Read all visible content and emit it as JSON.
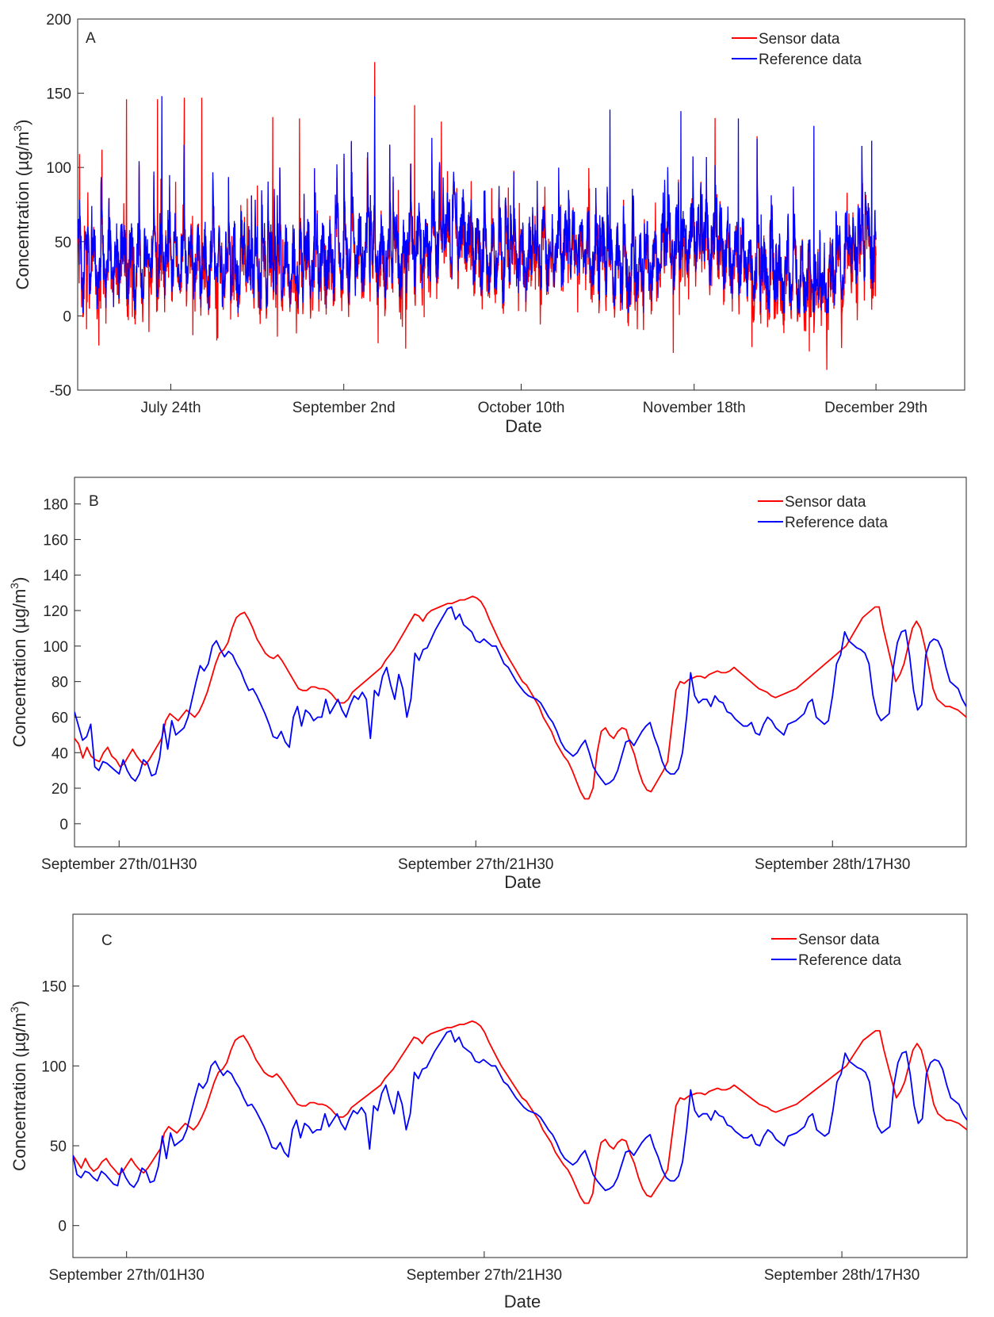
{
  "chart_data": [
    {
      "type": "line",
      "panel_label": "A",
      "xlabel": "Date",
      "ylabel": "Concentration (µg/m",
      "ylabel_sup": "3",
      "ylabel_close": ")",
      "ylim": [
        -50,
        200
      ],
      "yticks": [
        -50,
        0,
        50,
        100,
        150,
        200
      ],
      "xrange": [
        0,
        200
      ],
      "xticks": [
        {
          "pos": 21,
          "label": "July 24th"
        },
        {
          "pos": 60,
          "label": "September 2nd"
        },
        {
          "pos": 100,
          "label": "October 10th"
        },
        {
          "pos": 139,
          "label": "November 18th"
        },
        {
          "pos": 180,
          "label": "December 29th"
        }
      ],
      "data_end": 180,
      "legend_position": "top-right",
      "series": [
        {
          "name": "Sensor data",
          "color": "#ff0000"
        },
        {
          "name": "Reference data",
          "color": "#0000ff"
        }
      ],
      "sensor_extremes": [
        {
          "x": 11,
          "y": 146
        },
        {
          "x": 18,
          "y": 146
        },
        {
          "x": 24,
          "y": 147
        },
        {
          "x": 28,
          "y": 147
        },
        {
          "x": 44,
          "y": 134
        },
        {
          "x": 50,
          "y": 133
        },
        {
          "x": 67,
          "y": 171
        },
        {
          "x": 76,
          "y": 142
        },
        {
          "x": 82,
          "y": 131
        },
        {
          "x": 74,
          "y": -22
        },
        {
          "x": 165,
          "y": -24
        },
        {
          "x": 152,
          "y": -21
        },
        {
          "x": 45,
          "y": -14
        },
        {
          "x": 26,
          "y": -13
        },
        {
          "x": 2,
          "y": -9
        }
      ],
      "reference_extremes": [
        {
          "x": 19,
          "y": 148
        },
        {
          "x": 67,
          "y": 148
        },
        {
          "x": 120,
          "y": 139
        },
        {
          "x": 136,
          "y": 138
        },
        {
          "x": 149,
          "y": 133
        },
        {
          "x": 166,
          "y": 128
        },
        {
          "x": 179,
          "y": 118
        }
      ],
      "level_profile": [
        [
          0,
          28
        ],
        [
          10,
          34
        ],
        [
          20,
          40
        ],
        [
          30,
          35
        ],
        [
          40,
          30
        ],
        [
          50,
          33
        ],
        [
          60,
          38
        ],
        [
          66,
          45
        ],
        [
          72,
          38
        ],
        [
          80,
          52
        ],
        [
          86,
          58
        ],
        [
          92,
          42
        ],
        [
          100,
          36
        ],
        [
          110,
          46
        ],
        [
          118,
          38
        ],
        [
          126,
          28
        ],
        [
          134,
          44
        ],
        [
          140,
          50
        ],
        [
          148,
          42
        ],
        [
          156,
          22
        ],
        [
          162,
          26
        ],
        [
          168,
          18
        ],
        [
          174,
          44
        ],
        [
          180,
          42
        ]
      ]
    },
    {
      "type": "line",
      "panel_label": "B",
      "xlabel": "Date",
      "ylabel": "Concentration (µg/m",
      "ylabel_sup": "3",
      "ylabel_close": ")",
      "ylim": [
        -13,
        195
      ],
      "yticks": [
        0,
        20,
        40,
        60,
        80,
        100,
        120,
        140,
        160,
        180
      ],
      "xrange": [
        0,
        200
      ],
      "xticks": [
        {
          "pos": 10,
          "label": "September 27th/01H30"
        },
        {
          "pos": 90,
          "label": "September 27th/21H30"
        },
        {
          "pos": 170,
          "label": "September 28th/17H30"
        }
      ],
      "legend_position": "top-right",
      "series": [
        {
          "name": "Sensor data",
          "color": "#ff0000",
          "values": [
            48,
            45,
            37,
            43,
            38,
            36,
            35,
            40,
            43,
            38,
            36,
            32,
            34,
            38,
            42,
            38,
            35,
            33,
            36,
            40,
            44,
            48,
            58,
            62,
            60,
            58,
            61,
            64,
            62,
            60,
            63,
            68,
            74,
            82,
            90,
            96,
            98,
            102,
            110,
            116,
            118,
            119,
            115,
            110,
            104,
            100,
            96,
            94,
            93,
            95,
            92,
            88,
            84,
            80,
            76,
            75,
            75,
            77,
            77,
            76,
            76,
            75,
            73,
            70,
            68,
            68,
            70,
            74,
            76,
            78,
            80,
            82,
            84,
            86,
            88,
            92,
            95,
            98,
            102,
            106,
            110,
            114,
            118,
            117,
            114,
            118,
            120,
            121,
            122,
            123,
            124,
            124,
            125,
            126,
            126,
            127,
            128,
            127,
            125,
            121,
            115,
            110,
            105,
            100,
            96,
            92,
            88,
            84,
            80,
            78,
            74,
            70,
            66,
            60,
            56,
            52,
            46,
            42,
            38,
            35,
            30,
            24,
            18,
            14,
            14,
            20,
            40,
            52,
            54,
            50,
            48,
            52,
            54,
            53,
            45,
            39,
            30,
            23,
            19,
            18,
            22,
            26,
            30,
            35,
            55,
            75,
            80,
            79,
            81,
            82,
            83,
            83,
            82,
            84,
            85,
            86,
            85,
            85,
            86,
            88,
            86,
            84,
            82,
            80,
            78,
            76,
            75,
            74,
            72,
            71,
            72,
            73,
            74,
            75,
            76,
            78,
            80,
            82,
            84,
            86,
            88,
            90,
            92,
            94,
            96,
            98,
            100,
            104,
            108,
            112,
            116,
            118,
            120,
            122,
            122,
            110,
            100,
            90,
            80,
            84,
            90,
            100,
            110,
            114,
            110,
            100,
            88,
            76,
            70,
            68,
            66,
            66,
            65,
            64,
            62,
            60
          ]
        },
        {
          "name": "Reference data",
          "color": "#0000ff",
          "values": [
            63,
            55,
            47,
            49,
            56,
            32,
            30,
            35,
            34,
            32,
            30,
            28,
            36,
            30,
            26,
            24,
            28,
            36,
            34,
            27,
            28,
            37,
            56,
            42,
            58,
            50,
            52,
            54,
            60,
            70,
            80,
            89,
            86,
            90,
            100,
            103,
            98,
            94,
            97,
            95,
            90,
            86,
            80,
            75,
            76,
            72,
            67,
            62,
            56,
            49,
            48,
            52,
            46,
            43,
            60,
            66,
            55,
            64,
            62,
            58,
            60,
            60,
            70,
            62,
            66,
            70,
            64,
            60,
            67,
            72,
            70,
            74,
            70,
            48,
            75,
            72,
            83,
            88,
            78,
            70,
            84,
            76,
            60,
            70,
            96,
            92,
            98,
            99,
            104,
            109,
            113,
            117,
            121,
            122,
            115,
            118,
            112,
            110,
            108,
            103,
            102,
            104,
            102,
            100,
            100,
            95,
            90,
            88,
            84,
            80,
            77,
            74,
            72,
            71,
            70,
            68,
            64,
            60,
            57,
            52,
            46,
            42,
            40,
            38,
            40,
            44,
            47,
            40,
            32,
            28,
            25,
            22,
            23,
            25,
            30,
            38,
            46,
            47,
            44,
            48,
            52,
            55,
            57,
            49,
            43,
            35,
            30,
            28,
            28,
            31,
            40,
            60,
            85,
            72,
            68,
            70,
            70,
            66,
            72,
            69,
            68,
            63,
            62,
            59,
            57,
            55,
            55,
            57,
            51,
            50,
            56,
            60,
            58,
            54,
            52,
            50,
            56,
            57,
            58,
            60,
            62,
            68,
            70,
            60,
            58,
            56,
            58,
            72,
            90,
            95,
            108,
            103,
            101,
            99,
            98,
            96,
            90,
            72,
            62,
            58,
            60,
            62,
            88,
            102,
            108,
            109,
            95,
            75,
            64,
            67,
            95,
            102,
            104,
            103,
            98,
            88,
            80,
            78,
            76,
            70,
            66
          ]
        }
      ]
    },
    {
      "type": "line",
      "panel_label": "C",
      "xlabel": "Date",
      "ylabel": "Concentration (µg/m",
      "ylabel_sup": "3",
      "ylabel_close": ")",
      "ylim": [
        -20,
        195
      ],
      "yticks": [
        0,
        50,
        100,
        150
      ],
      "xrange": [
        0,
        200
      ],
      "xticks": [
        {
          "pos": 12,
          "label": "September 27th/01H30"
        },
        {
          "pos": 92,
          "label": "September 27th/21H30"
        },
        {
          "pos": 172,
          "label": "September 28th/17H30"
        }
      ],
      "legend_position": "top-right",
      "series": [
        {
          "name": "Sensor data",
          "color": "#ff0000",
          "values": [
            44,
            40,
            36,
            42,
            37,
            34,
            36,
            40,
            42,
            38,
            35,
            32,
            34,
            38,
            42,
            38,
            35,
            33,
            36,
            40,
            44,
            48,
            58,
            62,
            60,
            58,
            61,
            64,
            62,
            60,
            63,
            68,
            74,
            82,
            90,
            96,
            98,
            102,
            110,
            116,
            118,
            119,
            115,
            110,
            104,
            100,
            96,
            94,
            93,
            95,
            92,
            88,
            84,
            80,
            76,
            75,
            75,
            77,
            77,
            76,
            76,
            75,
            73,
            70,
            68,
            68,
            70,
            74,
            76,
            78,
            80,
            82,
            84,
            86,
            88,
            92,
            95,
            98,
            102,
            106,
            110,
            114,
            118,
            117,
            114,
            118,
            120,
            121,
            122,
            123,
            124,
            124,
            125,
            126,
            126,
            127,
            128,
            127,
            125,
            121,
            115,
            110,
            105,
            100,
            96,
            92,
            88,
            84,
            80,
            78,
            74,
            70,
            66,
            60,
            56,
            52,
            46,
            42,
            38,
            35,
            30,
            24,
            18,
            14,
            14,
            20,
            40,
            52,
            54,
            50,
            48,
            52,
            54,
            53,
            45,
            39,
            30,
            23,
            19,
            18,
            22,
            26,
            30,
            35,
            55,
            75,
            80,
            79,
            81,
            82,
            83,
            83,
            82,
            84,
            85,
            86,
            85,
            85,
            86,
            88,
            86,
            84,
            82,
            80,
            78,
            76,
            75,
            74,
            72,
            71,
            72,
            73,
            74,
            75,
            76,
            78,
            80,
            82,
            84,
            86,
            88,
            90,
            92,
            94,
            96,
            98,
            100,
            104,
            108,
            112,
            116,
            118,
            120,
            122,
            122,
            110,
            100,
            90,
            80,
            84,
            90,
            100,
            110,
            114,
            110,
            100,
            88,
            76,
            70,
            68,
            66,
            66,
            65,
            64,
            62,
            60
          ]
        },
        {
          "name": "Reference data",
          "color": "#0000ff",
          "values": [
            44,
            32,
            30,
            34,
            33,
            30,
            28,
            34,
            32,
            29,
            26,
            25,
            36,
            30,
            26,
            24,
            28,
            36,
            34,
            27,
            28,
            37,
            56,
            42,
            58,
            50,
            52,
            54,
            60,
            70,
            80,
            89,
            86,
            90,
            100,
            103,
            98,
            94,
            97,
            95,
            90,
            86,
            80,
            75,
            76,
            72,
            67,
            62,
            56,
            49,
            48,
            52,
            46,
            43,
            60,
            66,
            55,
            64,
            62,
            58,
            60,
            60,
            70,
            62,
            66,
            70,
            64,
            60,
            67,
            72,
            70,
            74,
            70,
            48,
            75,
            72,
            83,
            88,
            78,
            70,
            84,
            76,
            60,
            70,
            96,
            92,
            98,
            99,
            104,
            109,
            113,
            117,
            121,
            122,
            115,
            118,
            112,
            110,
            108,
            103,
            102,
            104,
            102,
            100,
            100,
            95,
            90,
            88,
            84,
            80,
            77,
            74,
            72,
            71,
            70,
            68,
            64,
            60,
            57,
            52,
            46,
            42,
            40,
            38,
            40,
            44,
            47,
            40,
            32,
            28,
            25,
            22,
            23,
            25,
            30,
            38,
            46,
            47,
            44,
            48,
            52,
            55,
            57,
            49,
            43,
            35,
            30,
            28,
            28,
            31,
            40,
            60,
            85,
            72,
            68,
            70,
            70,
            66,
            72,
            69,
            68,
            63,
            62,
            59,
            57,
            55,
            55,
            57,
            51,
            50,
            56,
            60,
            58,
            54,
            52,
            50,
            56,
            57,
            58,
            60,
            62,
            68,
            70,
            60,
            58,
            56,
            58,
            72,
            90,
            95,
            108,
            103,
            101,
            99,
            98,
            96,
            90,
            72,
            62,
            58,
            60,
            62,
            88,
            102,
            108,
            109,
            95,
            75,
            64,
            67,
            95,
            102,
            104,
            103,
            98,
            88,
            80,
            78,
            76,
            70,
            66
          ]
        }
      ]
    }
  ]
}
